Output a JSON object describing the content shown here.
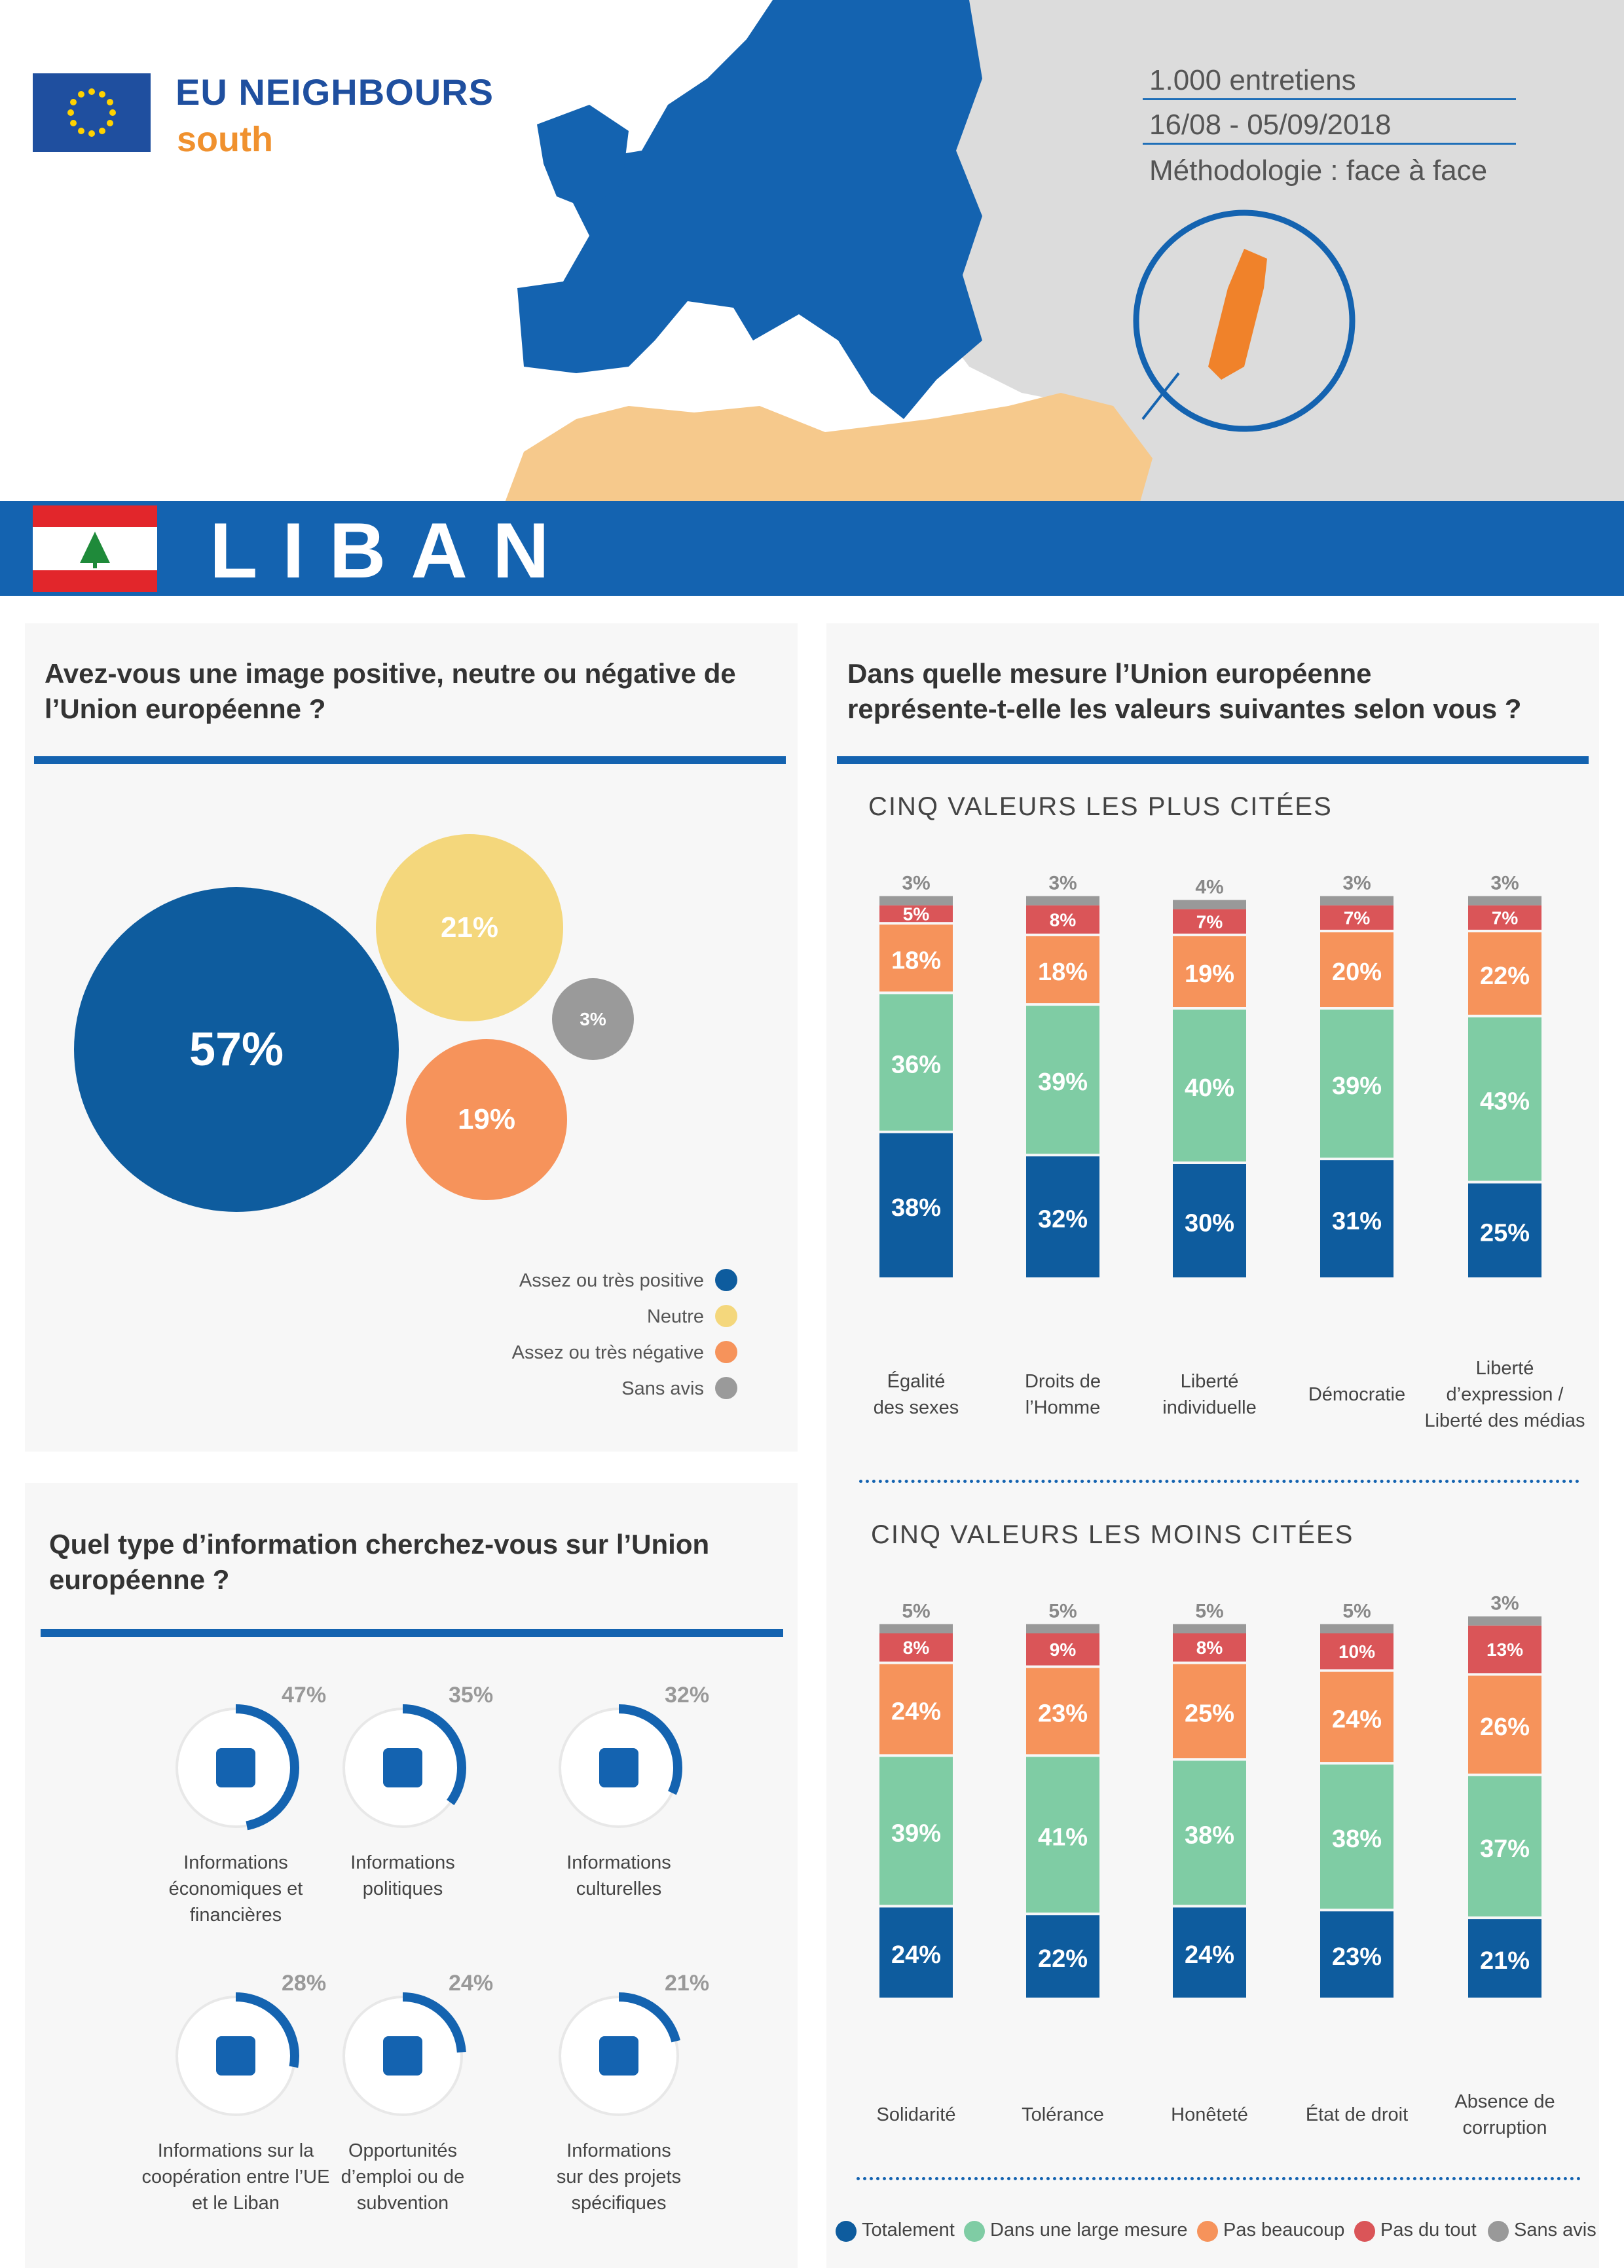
{
  "brand": {
    "line1": "EU NEIGHBOURS",
    "line2": "south"
  },
  "meta": {
    "interviews": "1.000 entretiens",
    "dates": "16/08 - 05/09/2018",
    "method": "Méthodologie : face à face"
  },
  "country": "LIBAN",
  "colors": {
    "totalement": "#0e5c9e",
    "large": "#7fcca4",
    "peu": "#f6935b",
    "pas": "#da5558",
    "sans": "#999999",
    "positive": "#0e5c9e",
    "neutre": "#f4d77c",
    "negative": "#f6935b",
    "sansavis": "#9a9a9a"
  },
  "q1": {
    "title_l1": "Avez-vous une image positive, neutre ou négative de",
    "title_l2": "l’Union européenne ?",
    "legend": [
      "Assez ou très positive",
      "Neutre",
      "Assez ou très négative",
      "Sans avis"
    ]
  },
  "q2": {
    "title_l1": "Dans quelle mesure l’Union européenne",
    "title_l2": "représente-t-elle les valeurs suivantes selon vous ?",
    "top_title": "CINQ VALEURS LES PLUS CITÉES",
    "bottom_title": "CINQ VALEURS LES MOINS CITÉES",
    "top_labels": [
      [
        "Égalité",
        "des sexes"
      ],
      [
        "Droits de",
        "l’Homme"
      ],
      [
        "Liberté",
        "individuelle"
      ],
      [
        "Démocratie"
      ],
      [
        "Liberté",
        "d’expression /",
        "Liberté des médias"
      ]
    ],
    "bottom_labels": [
      [
        "Solidarité"
      ],
      [
        "Tolérance"
      ],
      [
        "Honêteté"
      ],
      [
        "État de droit"
      ],
      [
        "Absence de",
        "corruption"
      ]
    ],
    "legend": [
      "Totalement",
      "Dans une large mesure",
      "Pas beaucoup",
      "Pas du tout",
      "Sans avis"
    ]
  },
  "q3": {
    "title_l1": "Quel type d’information cherchez-vous sur l’Union",
    "title_l2": "européenne ?",
    "items": [
      {
        "pct": "47%",
        "value": 47,
        "icon": "chart-icon",
        "label": [
          "Informations",
          "économiques et",
          "financières"
        ]
      },
      {
        "pct": "35%",
        "value": 35,
        "icon": "politician-icon",
        "label": [
          "Informations",
          "politiques"
        ]
      },
      {
        "pct": "32%",
        "value": 32,
        "icon": "museum-icon",
        "label": [
          "Informations",
          "culturelles"
        ]
      },
      {
        "pct": "28%",
        "value": 28,
        "icon": "handshake-icon",
        "label": [
          "Informations sur la",
          "coopération entre l’UE",
          "et le Liban"
        ]
      },
      {
        "pct": "24%",
        "value": 24,
        "icon": "tools-icon",
        "label": [
          "Opportunités",
          "d’emploi ou de",
          "subvention"
        ]
      },
      {
        "pct": "21%",
        "value": 21,
        "icon": "target-icon",
        "label": [
          "Informations",
          "sur des projets",
          "spécifiques"
        ]
      }
    ]
  },
  "chart_data": [
    {
      "type": "bubble",
      "title": "Avez-vous une image positive, neutre ou négative de l’Union européenne ?",
      "categories": [
        "Assez ou très positive",
        "Neutre",
        "Assez ou très négative",
        "Sans avis"
      ],
      "values": [
        57,
        21,
        19,
        3
      ],
      "labels": [
        "57%",
        "21%",
        "19%",
        "3%"
      ]
    },
    {
      "type": "bar",
      "stacked": true,
      "title": "CINQ VALEURS LES PLUS CITÉES",
      "categories": [
        "Égalité des sexes",
        "Droits de l’Homme",
        "Liberté individuelle",
        "Démocratie",
        "Liberté d’expression / Liberté des médias"
      ],
      "series": [
        {
          "name": "Totalement",
          "values": [
            38,
            32,
            30,
            31,
            25
          ],
          "labels": [
            "38%",
            "32%",
            "30%",
            "31%",
            "25%"
          ]
        },
        {
          "name": "Dans une large mesure",
          "values": [
            36,
            39,
            40,
            39,
            43
          ],
          "labels": [
            "36%",
            "39%",
            "40%",
            "39%",
            "43%"
          ]
        },
        {
          "name": "Pas beaucoup",
          "values": [
            18,
            18,
            19,
            20,
            22
          ],
          "labels": [
            "18%",
            "18%",
            "19%",
            "20%",
            "22%"
          ]
        },
        {
          "name": "Pas du tout",
          "values": [
            5,
            8,
            7,
            7,
            7
          ],
          "labels": [
            "5%",
            "8%",
            "7%",
            "7%",
            "7%"
          ]
        },
        {
          "name": "Sans avis",
          "values": [
            3,
            3,
            4,
            3,
            3
          ],
          "labels": [
            "3%",
            "3%",
            "4%",
            "3%",
            "3%"
          ]
        }
      ]
    },
    {
      "type": "bar",
      "stacked": true,
      "title": "CINQ VALEURS LES MOINS CITÉES",
      "categories": [
        "Solidarité",
        "Tolérance",
        "Honêteté",
        "État de droit",
        "Absence de corruption"
      ],
      "series": [
        {
          "name": "Totalement",
          "values": [
            24,
            22,
            24,
            23,
            21
          ],
          "labels": [
            "24%",
            "22%",
            "24%",
            "23%",
            "21%"
          ]
        },
        {
          "name": "Dans une large mesure",
          "values": [
            39,
            41,
            38,
            38,
            37
          ],
          "labels": [
            "39%",
            "41%",
            "38%",
            "38%",
            "37%"
          ]
        },
        {
          "name": "Pas beaucoup",
          "values": [
            24,
            23,
            25,
            24,
            26
          ],
          "labels": [
            "24%",
            "23%",
            "25%",
            "24%",
            "26%"
          ]
        },
        {
          "name": "Pas du tout",
          "values": [
            8,
            9,
            8,
            10,
            13
          ],
          "labels": [
            "8%",
            "9%",
            "8%",
            "10%",
            "13%"
          ]
        },
        {
          "name": "Sans avis",
          "values": [
            5,
            5,
            5,
            5,
            3
          ],
          "labels": [
            "5%",
            "5%",
            "5%",
            "5%",
            "3%"
          ]
        }
      ]
    }
  ]
}
